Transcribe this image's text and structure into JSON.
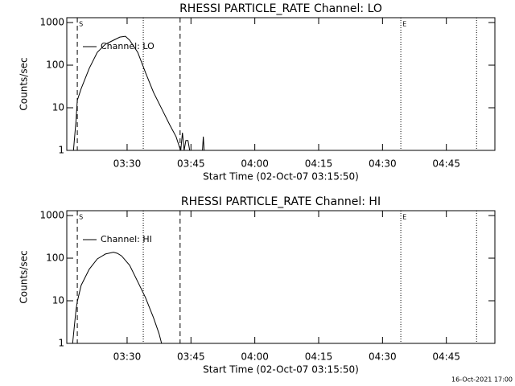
{
  "chart_data": [
    {
      "type": "line",
      "title": "RHESSI PARTICLE_RATE Channel: LO",
      "x_label": "Start Time (02-Oct-07 03:15:50)",
      "y_label": "Counts/sec",
      "x": [
        197.4,
        198.0,
        198.3,
        199.2,
        201.1,
        203.0,
        204.9,
        206.8,
        208.3,
        209.6,
        210.6,
        212.5,
        214.3,
        216.2,
        218.1,
        220.0,
        221.5,
        222.3,
        222.6,
        223.0,
        223.4,
        223.8,
        224.3,
        224.7,
        226.0,
        227.7,
        227.9,
        228.1
      ],
      "series": [
        {
          "name": "Channel: LO",
          "color": "#000000",
          "values": [
            1,
            5,
            15,
            28,
            84,
            200,
            310,
            385,
            455,
            475,
            385,
            200,
            68,
            23,
            9.6,
            4,
            2.1,
            1.2,
            1,
            2.6,
            1,
            1.7,
            1.7,
            1,
            null,
            1,
            2.1,
            1
          ]
        }
      ],
      "xlim": [
        195.83,
        296.4
      ],
      "xticks": [
        {
          "value": 210,
          "label": "03:30"
        },
        {
          "value": 225,
          "label": "03:45"
        },
        {
          "value": 240,
          "label": "04:00"
        },
        {
          "value": 255,
          "label": "04:15"
        },
        {
          "value": 270,
          "label": "04:30"
        },
        {
          "value": 285,
          "label": "04:45"
        }
      ],
      "ylim": [
        1,
        1300
      ],
      "yticks": [
        1,
        10,
        100,
        1000
      ],
      "y_scale": "log",
      "legend": "upper left",
      "markers": [
        {
          "x": 198.3,
          "style": "dashed",
          "label": "S"
        },
        {
          "x": 222.45,
          "style": "dashed"
        },
        {
          "x": 213.8,
          "style": "dotted"
        },
        {
          "x": 274.3,
          "style": "dotted",
          "label": "E"
        },
        {
          "x": 292.1,
          "style": "dotted"
        }
      ]
    },
    {
      "type": "line",
      "title": "RHESSI PARTICLE_RATE Channel: HI",
      "x_label": "Start Time (02-Oct-07 03:15:50)",
      "y_label": "Counts/sec",
      "x": [
        197.2,
        198.0,
        198.3,
        199.2,
        201.1,
        203.0,
        204.9,
        206.8,
        207.7,
        208.7,
        210.6,
        212.5,
        214.3,
        216.2,
        217.5,
        218.1
      ],
      "series": [
        {
          "name": "Channel: HI",
          "color": "#000000",
          "values": [
            1,
            6.2,
            9.6,
            23,
            55,
            96,
            125,
            138,
            130,
            113,
            68,
            28,
            12,
            4,
            1.7,
            1
          ]
        }
      ],
      "xlim": [
        195.83,
        296.4
      ],
      "xticks": [
        {
          "value": 210,
          "label": "03:30"
        },
        {
          "value": 225,
          "label": "03:45"
        },
        {
          "value": 240,
          "label": "04:00"
        },
        {
          "value": 255,
          "label": "04:15"
        },
        {
          "value": 270,
          "label": "04:30"
        },
        {
          "value": 285,
          "label": "04:45"
        }
      ],
      "ylim": [
        1,
        1300
      ],
      "yticks": [
        1,
        10,
        100,
        1000
      ],
      "y_scale": "log",
      "legend": "upper left",
      "markers": [
        {
          "x": 198.3,
          "style": "dashed",
          "label": "S"
        },
        {
          "x": 222.45,
          "style": "dashed"
        },
        {
          "x": 213.8,
          "style": "dotted"
        },
        {
          "x": 274.3,
          "style": "dotted",
          "label": "E"
        },
        {
          "x": 292.1,
          "style": "dotted"
        }
      ]
    }
  ],
  "footer": "16-Oct-2021 17:00"
}
